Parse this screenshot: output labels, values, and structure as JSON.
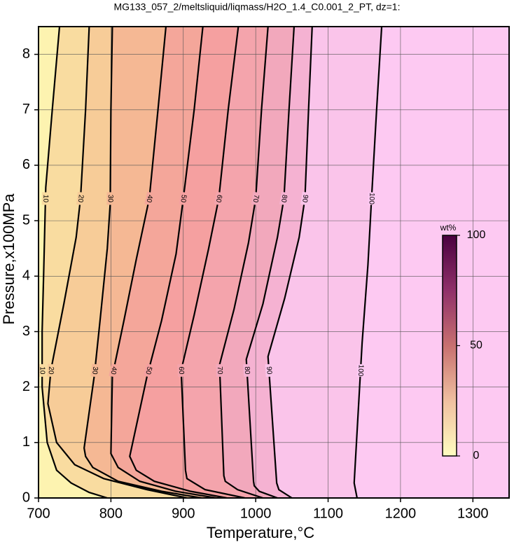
{
  "chart_data": {
    "type": "contour",
    "title": "MG133_057_2/meltsliquid/liqmass/H2O_1.4_C0.001_2_PT, dz=1:",
    "x_label": "Temperature,°C",
    "y_label": "Pressure,x100MPa",
    "xlim": [
      700,
      1350
    ],
    "ylim": [
      0,
      8.5
    ],
    "xticks": [
      700,
      800,
      900,
      1000,
      1100,
      1200,
      1300
    ],
    "yticks": [
      0,
      1,
      2,
      3,
      4,
      5,
      6,
      7,
      8
    ],
    "grid": true,
    "colormap": [
      "#fdf3b0",
      "#f9dca0",
      "#f7cc98",
      "#f5b894",
      "#f4a69a",
      "#f5a0a0",
      "#f4a4ac",
      "#f2a8bc",
      "#f5b2d2",
      "#fac4ea",
      "#fdc9f2"
    ],
    "contours": [
      {
        "level": 10,
        "x": [
          795,
          770,
          745,
          725,
          712,
          705,
          705,
          707,
          710,
          719,
          729
        ],
        "y": [
          0,
          0.1,
          0.27,
          0.5,
          1,
          2,
          3,
          4,
          5.6,
          7,
          8.5
        ]
      },
      {
        "level": 20,
        "x": [
          905,
          850,
          790,
          750,
          725,
          713,
          717,
          735,
          752,
          758,
          765,
          770
        ],
        "y": [
          0,
          0.15,
          0.35,
          0.6,
          1,
          1.7,
          2.3,
          3.5,
          4.7,
          5.4,
          7,
          8.5
        ]
      },
      {
        "level": 30,
        "x": [
          925,
          870,
          810,
          775,
          765,
          763,
          777,
          785,
          795,
          799,
          800,
          802
        ],
        "y": [
          0,
          0.12,
          0.3,
          0.55,
          0.75,
          0.9,
          2.2,
          3.2,
          4.5,
          5.3,
          7,
          8.5
        ]
      },
      {
        "level": 40,
        "x": [
          945,
          890,
          840,
          810,
          800,
          802,
          818,
          835,
          853,
          865,
          876
        ],
        "y": [
          0,
          0.12,
          0.3,
          0.55,
          0.8,
          2.2,
          3.2,
          4.3,
          5.4,
          7,
          8.5
        ]
      },
      {
        "level": 50,
        "x": [
          960,
          910,
          860,
          835,
          826,
          850,
          870,
          890,
          900,
          915,
          927
        ],
        "y": [
          0,
          0.12,
          0.3,
          0.5,
          0.75,
          2.2,
          3.2,
          4.4,
          5.4,
          7,
          8.5
        ]
      },
      {
        "level": 60,
        "x": [
          985,
          930,
          905,
          903,
          897,
          915,
          935,
          949,
          962,
          976
        ],
        "y": [
          0,
          0.15,
          0.35,
          0.5,
          2.3,
          3.3,
          4.5,
          5.4,
          7,
          8.5
        ]
      },
      {
        "level": 70,
        "x": [
          1010,
          975,
          958,
          956,
          950,
          970,
          990,
          1000,
          1008,
          1017
        ],
        "y": [
          0,
          0.15,
          0.3,
          0.4,
          2.4,
          3.4,
          4.6,
          5.4,
          7,
          8.5
        ]
      },
      {
        "level": 80,
        "x": [
          1030,
          1005,
          998,
          997,
          987,
          1010,
          1030,
          1039,
          1046,
          1053
        ],
        "y": [
          0,
          0.12,
          0.22,
          0.3,
          2.5,
          3.5,
          4.7,
          5.4,
          7,
          8.5
        ]
      },
      {
        "level": 90,
        "x": [
          1050,
          1032,
          1029,
          1017,
          1040,
          1060,
          1068,
          1073,
          1078
        ],
        "y": [
          0,
          0.15,
          0.27,
          2.55,
          3.6,
          4.7,
          5.4,
          7,
          8.5
        ]
      },
      {
        "level": 100,
        "x": [
          1140,
          1136,
          1147,
          1155,
          1160,
          1167,
          1174
        ],
        "y": [
          0,
          0.27,
          2.8,
          4.2,
          5.4,
          7,
          8.5
        ]
      }
    ],
    "colorbar": {
      "label": "wt%",
      "lim": [
        0,
        100
      ],
      "ticks": [
        0,
        50,
        100
      ],
      "colors": [
        "#fffcc0",
        "#f0c0a0",
        "#c87070",
        "#90306a",
        "#4a0040"
      ]
    }
  }
}
